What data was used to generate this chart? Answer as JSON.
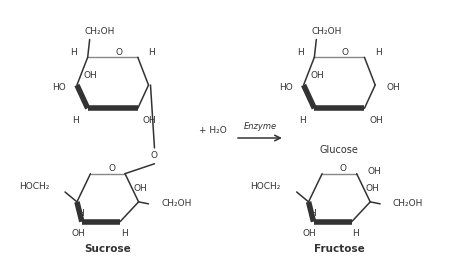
{
  "bg_color": "#ffffff",
  "line_color": "#333333",
  "text_color": "#333333",
  "figsize": [
    4.74,
    2.78
  ],
  "dpi": 100,
  "glucose_label": "Glucose",
  "sucrose_label": "Sucrose",
  "fructose_label": "Fructose",
  "reaction_label": "Enzyme",
  "water_label": "+ H₂O",
  "ch2oh": "CH₂OH",
  "hoch2": "HOCH₂"
}
